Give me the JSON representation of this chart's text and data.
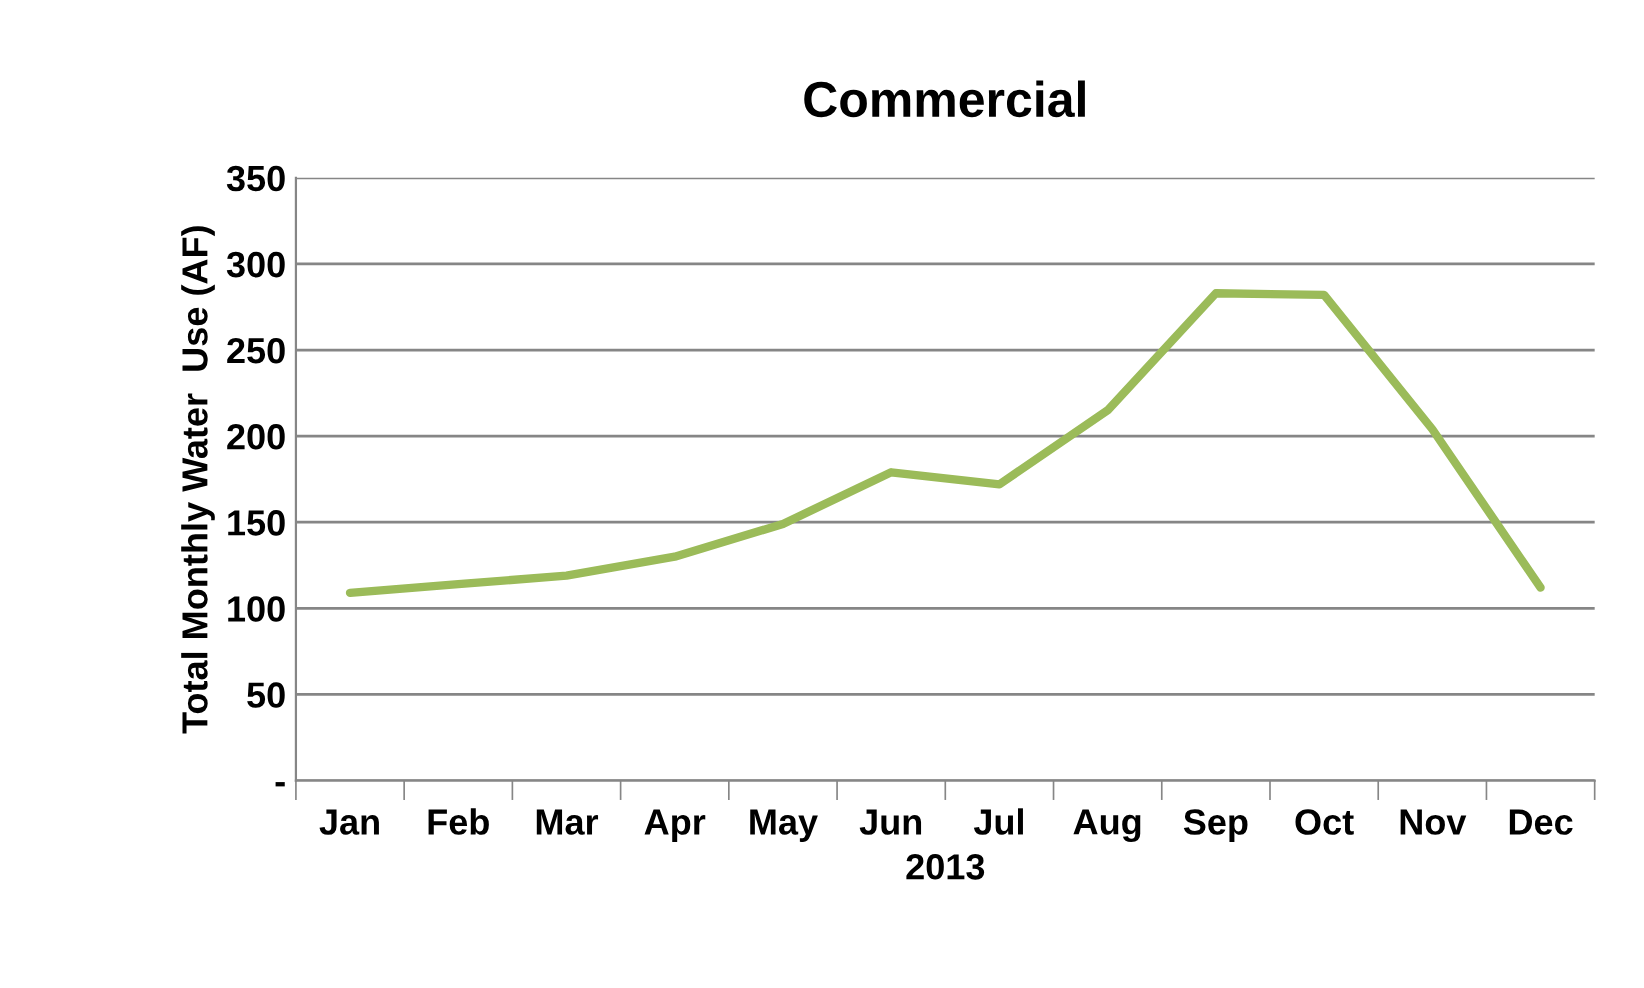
{
  "chart_data": {
    "type": "line",
    "title": "Commercial",
    "xlabel": "2013",
    "ylabel": "Total Monthly Water  Use (AF)",
    "categories": [
      "Jan",
      "Feb",
      "Mar",
      "Apr",
      "May",
      "Jun",
      "Jul",
      "Aug",
      "Sep",
      "Oct",
      "Nov",
      "Dec"
    ],
    "series": [
      {
        "color": "#9bbb59",
        "values": [
          109,
          114,
          119,
          130,
          149,
          179,
          172,
          215,
          283,
          282,
          204,
          112
        ]
      }
    ],
    "ylim": [
      0,
      350
    ],
    "yticks": [
      {
        "value": 0,
        "label": "-"
      },
      50,
      100,
      150,
      200,
      250,
      300,
      350
    ],
    "grid": "y",
    "marker": "none",
    "line_style": "solid"
  }
}
